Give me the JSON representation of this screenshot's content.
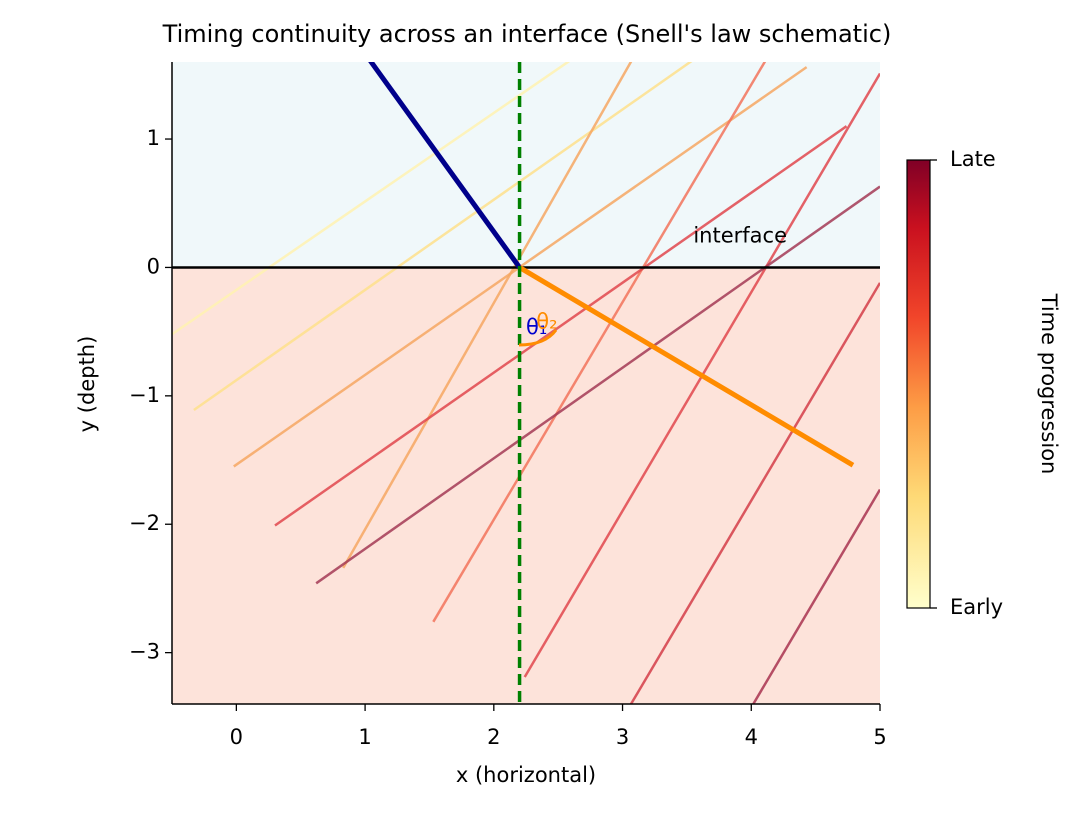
{
  "chart_data": {
    "type": "line",
    "title": "Timing continuity across an interface (Snell's law schematic)",
    "xlabel": "x (horizontal)",
    "ylabel": "y (depth)",
    "xlim": [
      -0.5,
      5
    ],
    "ylim": [
      -3.4,
      1.6
    ],
    "xticks": [
      0,
      1,
      2,
      3,
      4,
      5
    ],
    "yticks": [
      {
        "value": -3,
        "label": "−3"
      },
      {
        "value": -2,
        "label": "−2"
      },
      {
        "value": -1,
        "label": "−1"
      },
      {
        "value": 0,
        "label": "0"
      },
      {
        "value": 1,
        "label": "1"
      }
    ],
    "interface_y": 0,
    "normal_x": 2.2,
    "upper_color": "#f0f8fa",
    "lower_color": "#fde3da",
    "series": [
      {
        "color": "#fff2b0",
        "width": 2.5,
        "x": [
          -0.5,
          2.59
        ],
        "values": [
          -0.52,
          1.61
        ]
      },
      {
        "color": "#fee08b",
        "width": 2.5,
        "x": [
          -0.33,
          3.54
        ],
        "values": [
          -1.11,
          1.61
        ]
      },
      {
        "color": "#f6a762",
        "width": 2.5,
        "x": [
          -0.02,
          4.43
        ],
        "values": [
          -1.55,
          1.56
        ]
      },
      {
        "color": "#f6a762",
        "width": 2.5,
        "x": [
          0.83,
          3.07
        ],
        "values": [
          -2.34,
          1.61
        ]
      },
      {
        "color": "#f2735a",
        "width": 2.5,
        "x": [
          1.53,
          4.11
        ],
        "values": [
          -2.76,
          1.61
        ]
      },
      {
        "color": "#e1474c",
        "width": 2.5,
        "x": [
          0.3,
          4.74
        ],
        "values": [
          -2.01,
          1.1
        ]
      },
      {
        "color": "#e1474c",
        "width": 2.5,
        "x": [
          2.24,
          5
        ],
        "values": [
          -3.19,
          1.51
        ]
      },
      {
        "color": "#a33a55",
        "width": 2.5,
        "x": [
          0.62,
          5
        ],
        "values": [
          -2.46,
          0.63
        ]
      },
      {
        "color": "#d43d48",
        "width": 2.5,
        "x": [
          3.06,
          5
        ],
        "values": [
          -3.41,
          -0.12
        ]
      },
      {
        "color": "#a8334f",
        "width": 2.5,
        "x": [
          4.01,
          5
        ],
        "values": [
          -3.41,
          -1.73
        ]
      },
      {
        "color": "#00008b",
        "width": 5,
        "x": [
          1.04,
          2.2
        ],
        "values": [
          1.61,
          0
        ]
      },
      {
        "color": "#ff8c00",
        "width": 5,
        "x": [
          2.2,
          4.79
        ],
        "values": [
          0,
          -1.54
        ]
      }
    ],
    "annotations": [
      {
        "text": "interface",
        "x": 3.55,
        "y": 0.24,
        "color": "#000000"
      },
      {
        "text": "θ₁",
        "x": 2.25,
        "y": -0.47,
        "color": "#0000cd"
      },
      {
        "text": "θ₂",
        "x": 2.33,
        "y": -0.43,
        "color": "#ff8c00"
      }
    ],
    "colorbar": {
      "label": "Time progression",
      "lim": [
        0,
        1
      ],
      "ticks": [
        {
          "value": 0,
          "label": "Early"
        },
        {
          "value": 1,
          "label": "Late"
        }
      ]
    }
  }
}
